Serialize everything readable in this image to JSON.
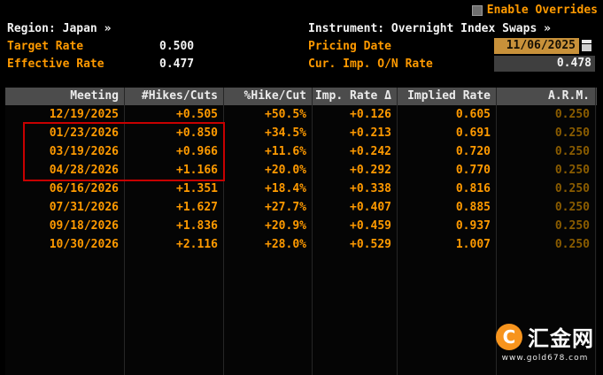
{
  "topbar": {
    "enable_overrides_label": "Enable Overrides"
  },
  "header": {
    "region_label": "Region: Japan »",
    "instrument_label": "Instrument: Overnight Index Swaps »",
    "target_rate_label": "Target Rate",
    "target_rate_value": "0.500",
    "pricing_date_label": "Pricing Date",
    "pricing_date_value": "11/06/2025",
    "effective_rate_label": "Effective Rate",
    "effective_rate_value": "0.477",
    "cur_imp_label": "Cur. Imp. O/N Rate",
    "cur_imp_value": "0.478"
  },
  "table": {
    "headers": [
      "Meeting",
      "#Hikes/Cuts",
      "%Hike/Cut",
      "Imp. Rate Δ",
      "Implied Rate",
      "A.R.M."
    ],
    "rows": [
      [
        "12/19/2025",
        "+0.505",
        "+50.5%",
        "+0.126",
        "0.605",
        "0.250"
      ],
      [
        "01/23/2026",
        "+0.850",
        "+34.5%",
        "+0.213",
        "0.691",
        "0.250"
      ],
      [
        "03/19/2026",
        "+0.966",
        "+11.6%",
        "+0.242",
        "0.720",
        "0.250"
      ],
      [
        "04/28/2026",
        "+1.166",
        "+20.0%",
        "+0.292",
        "0.770",
        "0.250"
      ],
      [
        "06/16/2026",
        "+1.351",
        "+18.4%",
        "+0.338",
        "0.816",
        "0.250"
      ],
      [
        "07/31/2026",
        "+1.627",
        "+27.7%",
        "+0.407",
        "0.885",
        "0.250"
      ],
      [
        "09/18/2026",
        "+1.836",
        "+20.9%",
        "+0.459",
        "0.937",
        "0.250"
      ],
      [
        "10/30/2026",
        "+2.116",
        "+28.0%",
        "+0.529",
        "1.007",
        "0.250"
      ]
    ],
    "highlighted_rows": [
      "01/23/2026",
      "03/19/2026",
      "04/28/2026"
    ]
  },
  "watermark": {
    "logo_letter": "C",
    "brand": "汇金网",
    "url": "www.gold678.com"
  },
  "colors": {
    "amber": "#ff9a00",
    "dim_amber": "#8a5c00",
    "white": "#f2f2f2",
    "header_bg": "#4c4c4c",
    "highlight_red": "#c80000",
    "date_field_bg": "#c8913a",
    "value_field_bg": "#3f3f3f",
    "watermark_orange": "#f7941d"
  }
}
